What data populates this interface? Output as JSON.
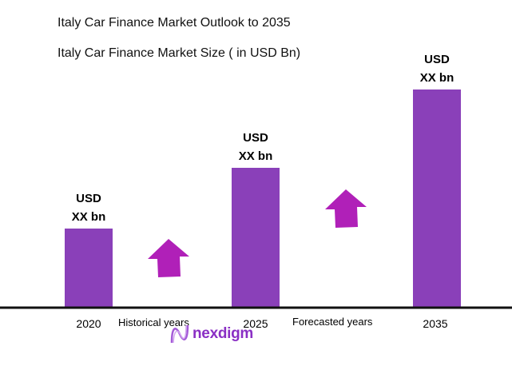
{
  "chart_data": {
    "type": "bar",
    "title": "Italy Car Finance Market Outlook to 2035",
    "subtitle": "Italy Car Finance Market Size ( in USD Bn)",
    "categories": [
      "2020",
      "2025",
      "2035"
    ],
    "values": [
      99,
      175,
      273
    ],
    "value_note_labels": [
      {
        "line1": "USD",
        "line2": "XX bn"
      },
      {
        "line1": "USD",
        "line2": "XX bn"
      },
      {
        "line1": "USD",
        "line2": "XX bn"
      }
    ],
    "period_labels": [
      "Historical years",
      "Forecasted years"
    ],
    "ylim": [
      0,
      300
    ],
    "grid": false,
    "bar_color": "#8a40b9",
    "arrow_color": "#b020b8",
    "axis_color": "#111111"
  },
  "brand": {
    "logo_text": "nexdigm",
    "logo_color": "#8a2fc4"
  }
}
